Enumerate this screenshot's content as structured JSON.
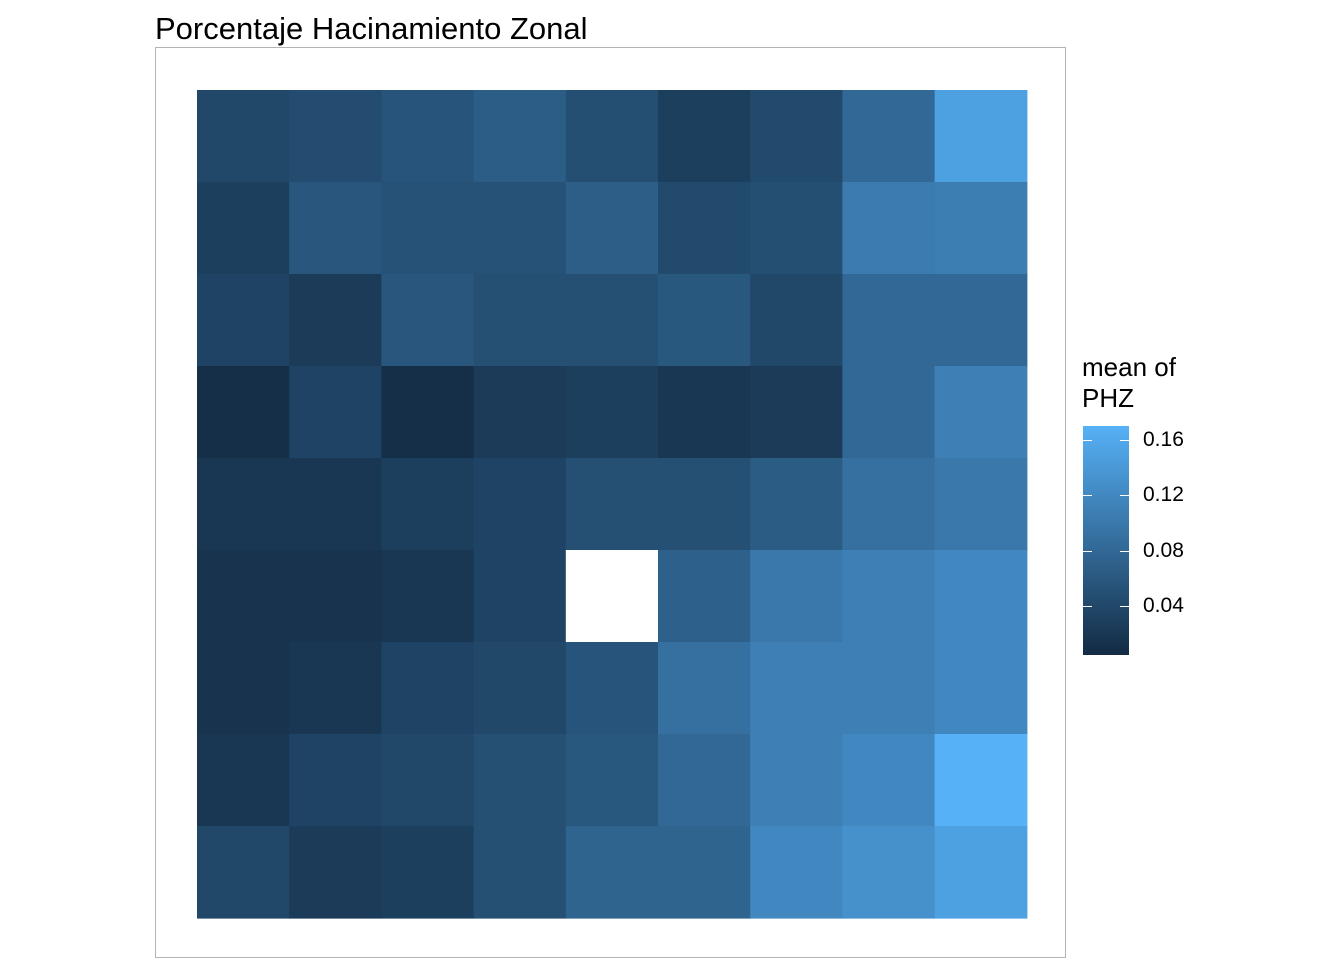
{
  "chart_data": {
    "type": "heatmap",
    "title": "Porcentaje Hacinamiento Zonal",
    "xlabel": "",
    "ylabel": "",
    "grid": false,
    "n_rows": 9,
    "n_cols": 9,
    "values": [
      [
        0.04,
        0.046,
        0.055,
        0.066,
        0.048,
        0.03,
        0.043,
        0.08,
        0.15
      ],
      [
        0.03,
        0.058,
        0.053,
        0.053,
        0.068,
        0.043,
        0.048,
        0.104,
        0.107
      ],
      [
        0.035,
        0.025,
        0.058,
        0.05,
        0.05,
        0.06,
        0.04,
        0.08,
        0.08
      ],
      [
        0.01,
        0.035,
        0.01,
        0.025,
        0.03,
        0.02,
        0.025,
        0.08,
        0.11
      ],
      [
        0.02,
        0.02,
        0.03,
        0.035,
        0.05,
        0.05,
        0.065,
        0.09,
        0.1
      ],
      [
        0.015,
        0.015,
        0.02,
        0.035,
        null,
        0.07,
        0.1,
        0.11,
        0.12
      ],
      [
        0.015,
        0.02,
        0.035,
        0.04,
        0.055,
        0.09,
        0.11,
        0.11,
        0.12
      ],
      [
        0.02,
        0.035,
        0.04,
        0.05,
        0.06,
        0.08,
        0.11,
        0.12,
        0.17
      ],
      [
        0.04,
        0.025,
        0.03,
        0.05,
        0.075,
        0.075,
        0.12,
        0.13,
        0.15
      ]
    ],
    "color_scale": {
      "low_color": "#132b43",
      "high_color": "#56b1f7",
      "min": 0.005,
      "max": 0.17,
      "na_color": "#ffffff"
    },
    "legend": {
      "title_line1": "mean of",
      "title_line2": "PHZ",
      "position": "right",
      "ticks": [
        {
          "value": 0.16,
          "label": "0.16"
        },
        {
          "value": 0.12,
          "label": "0.12"
        },
        {
          "value": 0.08,
          "label": "0.08"
        },
        {
          "value": 0.04,
          "label": "0.04"
        }
      ]
    }
  }
}
